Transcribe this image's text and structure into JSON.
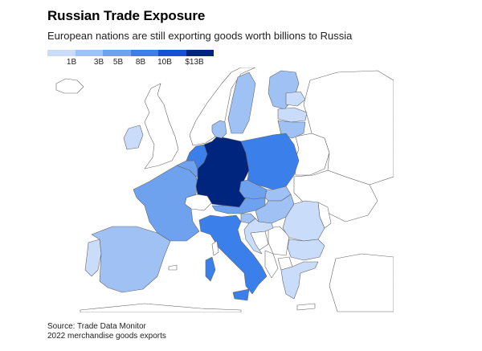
{
  "header": {
    "title": "Russian Trade Exposure",
    "subtitle": "European nations are still exporting goods worth billions to Russia"
  },
  "legend": {
    "labels": [
      "1B",
      "3B",
      "5B",
      "8B",
      "10B",
      "$13B"
    ],
    "colors": [
      "#c9dcfa",
      "#9fc1f3",
      "#6ea1ee",
      "#3a7fea",
      "#1451d6",
      "#00257e"
    ]
  },
  "colors": {
    "no_data_fill": "#ffffff",
    "border_stroke": "#666666"
  },
  "map": {
    "countries": [
      {
        "name": "Germany",
        "tier": 5
      },
      {
        "name": "Poland",
        "tier": 3
      },
      {
        "name": "Italy",
        "tier": 3
      },
      {
        "name": "Netherlands",
        "tier": 3
      },
      {
        "name": "France",
        "tier": 2
      },
      {
        "name": "Belgium",
        "tier": 2
      },
      {
        "name": "Austria",
        "tier": 2
      },
      {
        "name": "Czechia",
        "tier": 2
      },
      {
        "name": "Spain",
        "tier": 1
      },
      {
        "name": "Sweden",
        "tier": 1
      },
      {
        "name": "Finland",
        "tier": 1
      },
      {
        "name": "Lithuania",
        "tier": 1
      },
      {
        "name": "Hungary",
        "tier": 1
      },
      {
        "name": "Slovakia",
        "tier": 1
      },
      {
        "name": "Slovenia",
        "tier": 1
      },
      {
        "name": "Denmark",
        "tier": 1
      },
      {
        "name": "Portugal",
        "tier": 0
      },
      {
        "name": "Ireland",
        "tier": 0
      },
      {
        "name": "Latvia",
        "tier": 0
      },
      {
        "name": "Estonia",
        "tier": 0
      },
      {
        "name": "Romania",
        "tier": 0
      },
      {
        "name": "Bulgaria",
        "tier": 0
      },
      {
        "name": "Greece",
        "tier": 0
      },
      {
        "name": "Croatia",
        "tier": 0
      },
      {
        "name": "Luxembourg",
        "tier": 0
      }
    ]
  },
  "footer": {
    "source": "Source: Trade Data Monitor",
    "note": "2022 merchandise goods exports"
  }
}
